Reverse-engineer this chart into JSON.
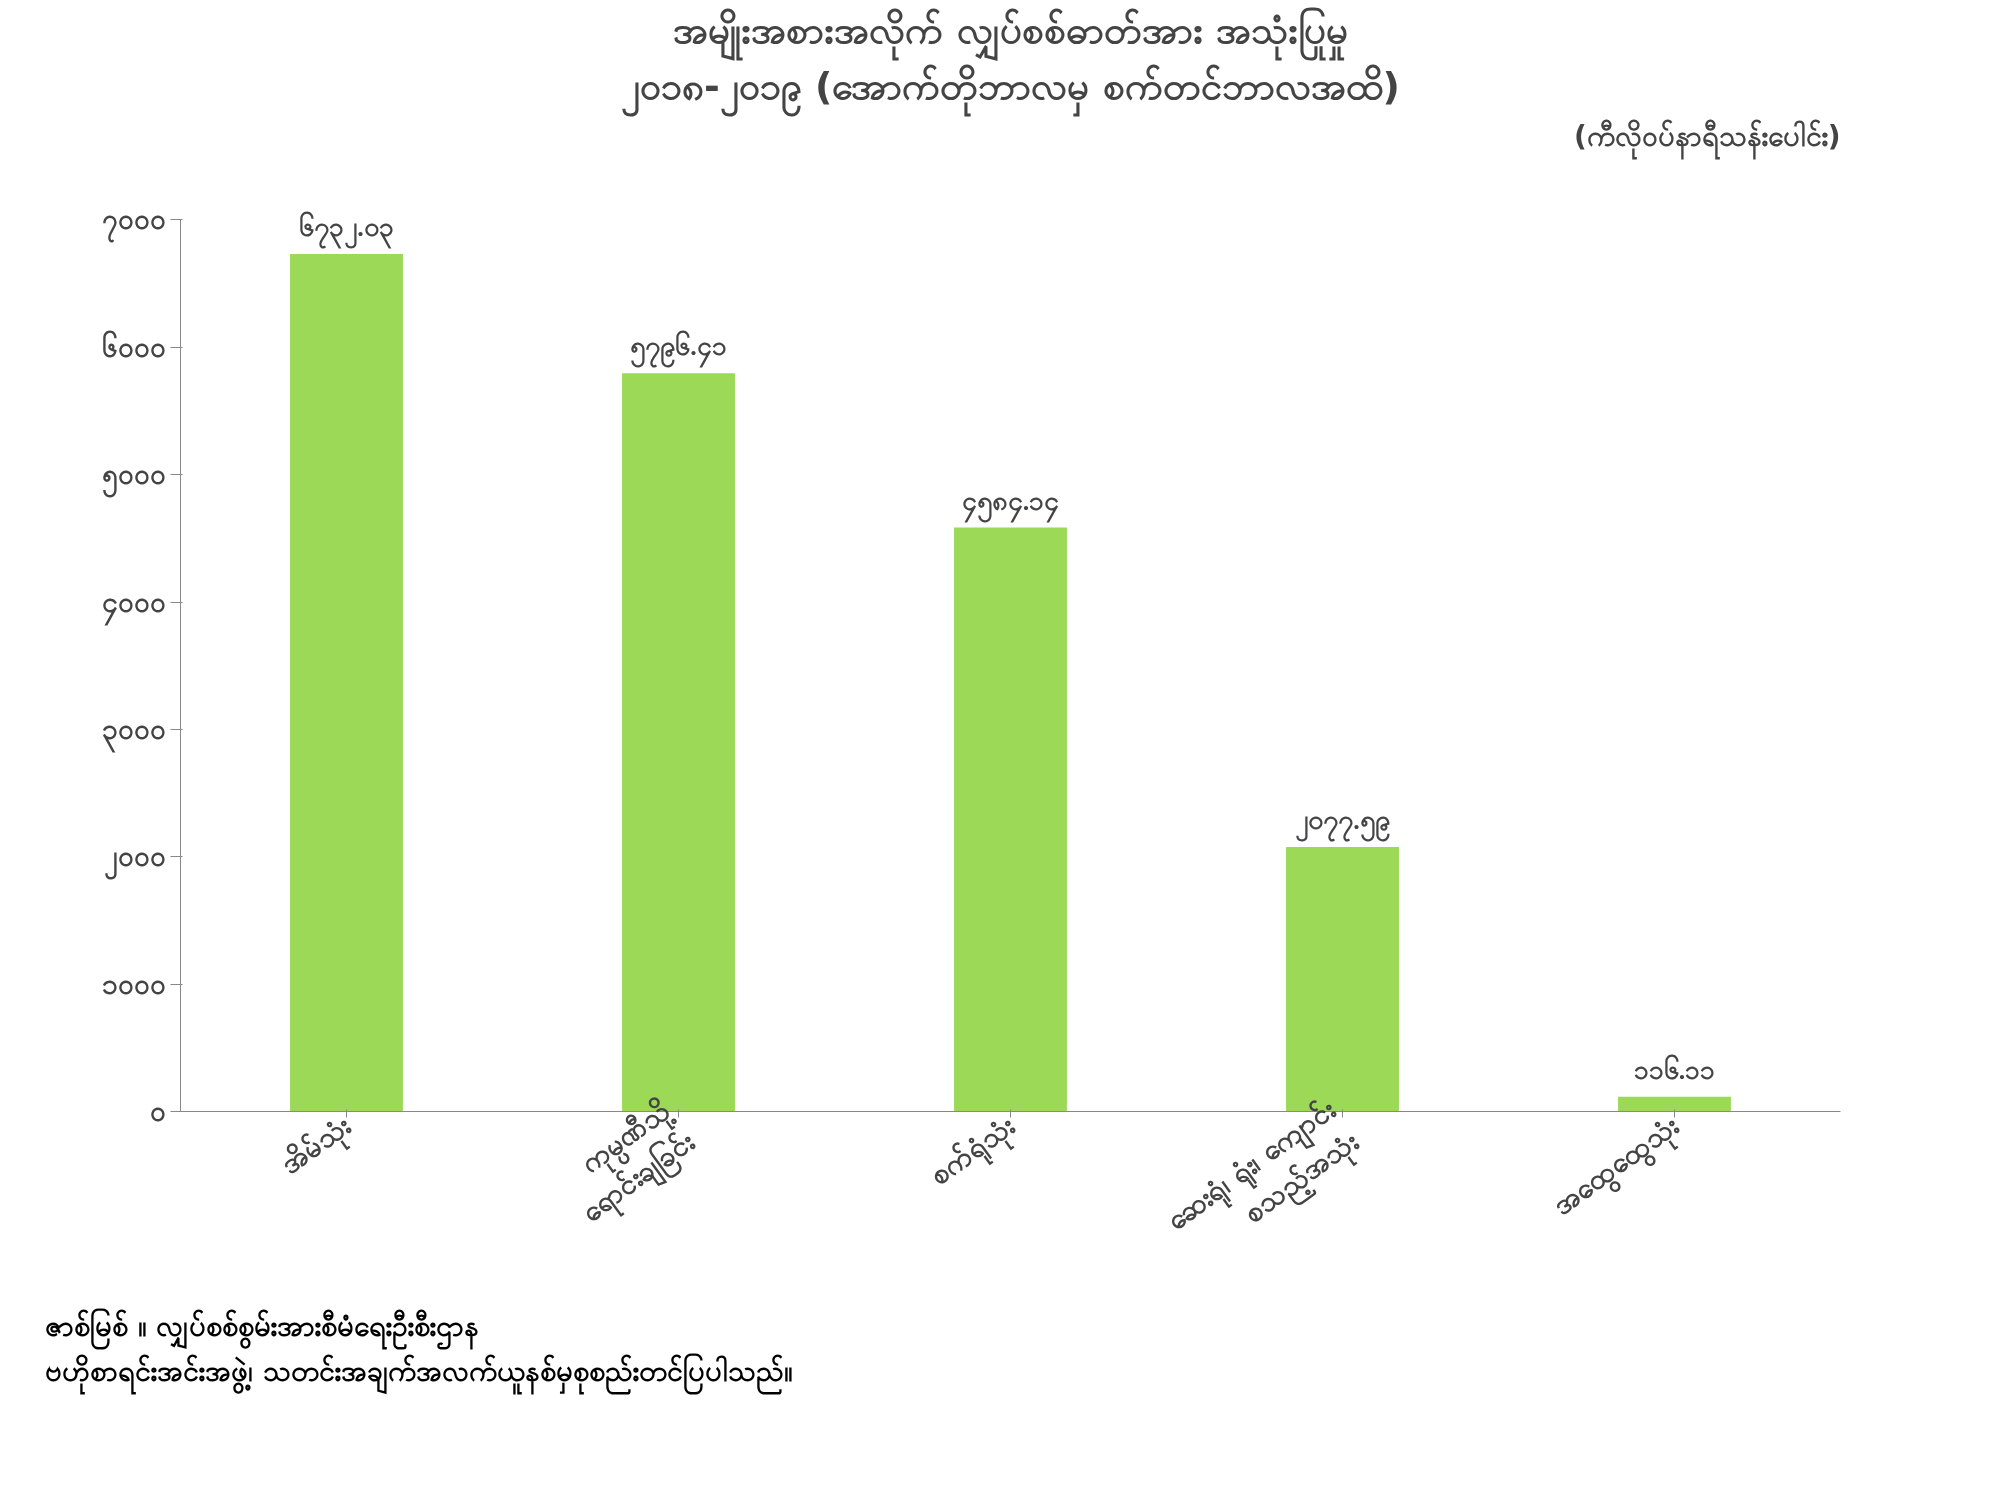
{
  "chart_data": {
    "type": "bar",
    "title": "အမျိုးအစားအလိုက် လျှပ်စစ်ဓာတ်အား အသုံးပြုမှု",
    "subtitle": "၂၀၁၈-၂၀၁၉ (အောက်တိုဘာလမှ စက်တင်ဘာလအထိ)",
    "ylabel": "(ကီလိုဝပ်နာရီသန်းပေါင်း)",
    "categories": [
      "အိမ်သုံး",
      "ကုမ္ပဏီသို့\nရောင်းချခြင်း",
      "စက်ရုံသုံး",
      "ဆေးရုံ၊ ရုံး၊ ကျောင်း\nစသည့်အသုံး",
      "အထွေထွေသုံး"
    ],
    "values": [
      6732.03,
      5796.41,
      4584.14,
      2077.59,
      116.11
    ],
    "value_labels": [
      "၆၇၃၂.၀၃",
      "၅၇၉၆.၄၁",
      "၄၅၈၄.၁၄",
      "၂၀၇၇.၅၉",
      "၁၁၆.၁၁"
    ],
    "color": "#9bd957",
    "ylim": [
      0,
      7000
    ],
    "yticks": [
      {
        "value": 0,
        "label": "၀"
      },
      {
        "value": 1000,
        "label": "၁၀၀၀"
      },
      {
        "value": 2000,
        "label": "၂၀၀၀"
      },
      {
        "value": 3000,
        "label": "၃၀၀၀"
      },
      {
        "value": 4000,
        "label": "၄၀၀၀"
      },
      {
        "value": 5000,
        "label": "၅၀၀၀"
      },
      {
        "value": 6000,
        "label": "၆၀၀၀"
      },
      {
        "value": 7000,
        "label": "၇၀၀၀"
      }
    ],
    "annotations": [
      "ဇာစ်မြစ် ။ လျှပ်စစ်စွမ်းအားစီမံရေးဦးစီးဌာန",
      "ဗဟိုစာရင်းအင်းအဖွဲ့၊ သတင်းအချက်အလက်ယူနစ်မှစုစည်းတင်ပြပါသည်။"
    ],
    "grid": false
  }
}
